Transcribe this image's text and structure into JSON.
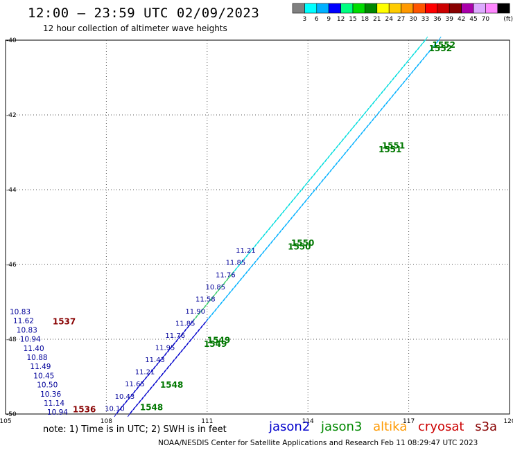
{
  "header": {
    "title": "12:00 – 23:59 UTC 02/09/2023",
    "subtitle": "12 hour collection of altimeter wave heights"
  },
  "scale": {
    "unit_label": "(ft)",
    "bins": [
      {
        "color": "#808080",
        "label": ""
      },
      {
        "color": "#00ffff",
        "label": "3"
      },
      {
        "color": "#00b0ff",
        "label": "6"
      },
      {
        "color": "#0000ff",
        "label": "9"
      },
      {
        "color": "#00ff80",
        "label": "12"
      },
      {
        "color": "#00dd00",
        "label": "15"
      },
      {
        "color": "#008800",
        "label": "18"
      },
      {
        "color": "#ffff00",
        "label": "21"
      },
      {
        "color": "#ffcc00",
        "label": "24"
      },
      {
        "color": "#ff9900",
        "label": "27"
      },
      {
        "color": "#ff5500",
        "label": "30"
      },
      {
        "color": "#ff0000",
        "label": "33"
      },
      {
        "color": "#cc0000",
        "label": "36"
      },
      {
        "color": "#880000",
        "label": "39"
      },
      {
        "color": "#aa00aa",
        "label": "42"
      },
      {
        "color": "#ddaaff",
        "label": "45"
      },
      {
        "color": "#ff88ff",
        "label": "70"
      },
      {
        "color": "#000000",
        "label": ""
      }
    ]
  },
  "axes": {
    "x_ticks": [
      "105",
      "108",
      "111",
      "114",
      "117",
      "120"
    ],
    "y_ticks": [
      "-40",
      "-42",
      "-44",
      "-46",
      "-48",
      "-50"
    ],
    "lon_range": [
      105,
      120
    ],
    "lat_range": [
      -50,
      -40
    ]
  },
  "west_swh": {
    "values": [
      "10.83",
      "11.62",
      "10.83",
      "10.94",
      "11.40",
      "10.88",
      "11.49",
      "10.45",
      "10.50",
      "10.36",
      "11.14",
      "10.94"
    ],
    "color": "#000099"
  },
  "track_swh": {
    "values": [
      "10.10",
      "10.43",
      "11.65",
      "11.21",
      "11.43",
      "11.95",
      "11.76",
      "11.85",
      "11.90",
      "11.58",
      "10.85",
      "11.76",
      "11.85",
      "11.21"
    ],
    "color": "#000099"
  },
  "orbit_labels": [
    {
      "text": "1537",
      "color": "#880000",
      "lon": 106.4,
      "lat": -47.6
    },
    {
      "text": "1536",
      "color": "#880000",
      "lon": 107.0,
      "lat": -49.95
    },
    {
      "text": "1548",
      "color": "#007700",
      "lon": 109.0,
      "lat": -49.9
    },
    {
      "text": "1548",
      "color": "#007700",
      "lon": 109.6,
      "lat": -49.3
    },
    {
      "text": "1549",
      "color": "#007700",
      "lon": 111.0,
      "lat": -48.1
    },
    {
      "text": "1549",
      "color": "#007700",
      "lon": 110.9,
      "lat": -48.2
    },
    {
      "text": "1550",
      "color": "#007700",
      "lon": 113.5,
      "lat": -45.5
    },
    {
      "text": "1550",
      "color": "#007700",
      "lon": 113.4,
      "lat": -45.6
    },
    {
      "text": "1551",
      "color": "#007700",
      "lon": 116.2,
      "lat": -42.9
    },
    {
      "text": "1551",
      "color": "#007700",
      "lon": 116.1,
      "lat": -43.0
    },
    {
      "text": "1552",
      "color": "#007700",
      "lon": 117.7,
      "lat": -40.2
    },
    {
      "text": "1552",
      "color": "#007700",
      "lon": 117.6,
      "lat": -40.3
    }
  ],
  "tracks": [
    {
      "name": "jason3",
      "from": {
        "lon": 108.3,
        "lat": -50.0
      },
      "to": {
        "lon": 117.5,
        "lat": -40.0
      },
      "color": "#00dddd"
    },
    {
      "name": "jason3",
      "from": {
        "lon": 108.7,
        "lat": -50.0
      },
      "to": {
        "lon": 117.9,
        "lat": -40.0
      },
      "color": "#00b0ff"
    }
  ],
  "footer": {
    "note": "note: 1) Time is in UTC; 2) SWH is in feet",
    "satellites": [
      {
        "label": "jason2",
        "color": "#0000cc"
      },
      {
        "label": "jason3",
        "color": "#008800"
      },
      {
        "label": "altika",
        "color": "#ff9900"
      },
      {
        "label": "cryosat",
        "color": "#cc0000"
      },
      {
        "label": "s3a",
        "color": "#880000"
      }
    ],
    "credit": "NOAA/NESDIS Center for Satellite Applications and Research    Feb 11 08:29:47 UTC 2023"
  }
}
